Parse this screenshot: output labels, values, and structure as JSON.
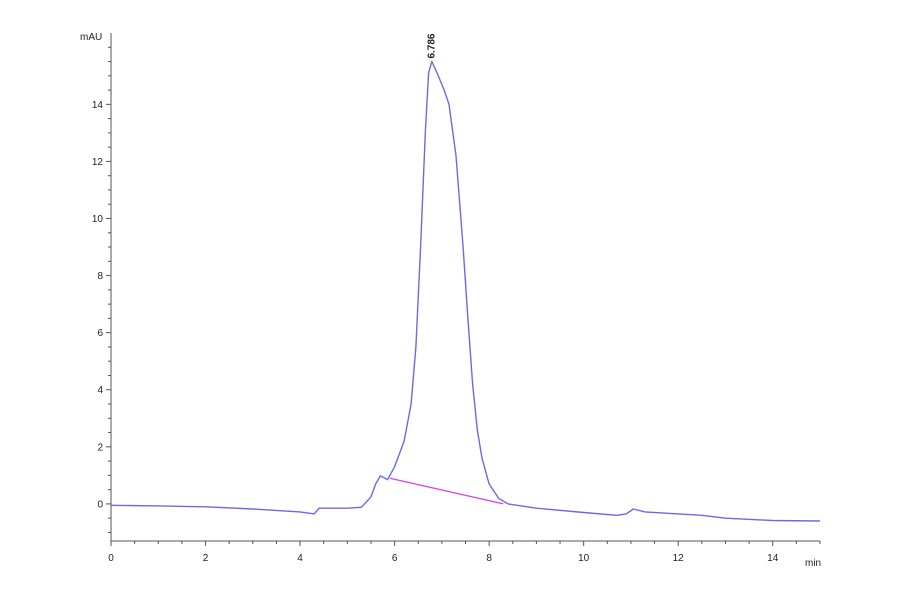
{
  "chart_data": {
    "type": "line",
    "title": "",
    "xlabel": "min",
    "ylabel": "mAU",
    "xlim": [
      0,
      15
    ],
    "ylim": [
      -1.3,
      16.5
    ],
    "xticks": [
      0,
      2,
      4,
      6,
      8,
      10,
      12,
      14
    ],
    "yticks": [
      0,
      2,
      4,
      6,
      8,
      10,
      12,
      14
    ],
    "grid": false,
    "colors": {
      "signal": "#6a6ae6",
      "baseline": "#e040e0",
      "axis": "#555555"
    },
    "series": [
      {
        "x": [
          0,
          1,
          2,
          3,
          4,
          4.3,
          4.4,
          5.0,
          5.3,
          5.5,
          5.6,
          5.7,
          5.85,
          6.0,
          6.2,
          6.35,
          6.45,
          6.55,
          6.65,
          6.72,
          6.786,
          6.9,
          7.05,
          7.15,
          7.3,
          7.45,
          7.55,
          7.65,
          7.75,
          7.85,
          8.0,
          8.2,
          8.4,
          9,
          10,
          10.7,
          10.9,
          11.05,
          11.3,
          12,
          12.5,
          13,
          14,
          15
        ],
        "y": [
          -0.05,
          -0.07,
          -0.1,
          -0.18,
          -0.28,
          -0.35,
          -0.15,
          -0.15,
          -0.12,
          0.25,
          0.7,
          0.98,
          0.85,
          1.3,
          2.2,
          3.5,
          5.5,
          9,
          13,
          15.1,
          15.5,
          15.1,
          14.5,
          14.0,
          12.2,
          9,
          6.5,
          4.2,
          2.6,
          1.6,
          0.7,
          0.2,
          0.0,
          -0.15,
          -0.3,
          -0.4,
          -0.35,
          -0.18,
          -0.28,
          -0.35,
          -0.4,
          -0.5,
          -0.58,
          -0.6
        ]
      }
    ],
    "baseline": {
      "x": [
        5.9,
        8.3
      ],
      "y": [
        0.9,
        0.0
      ]
    },
    "annotations": [
      {
        "text": "6.786",
        "x": 6.786,
        "y": 15.5
      }
    ]
  }
}
